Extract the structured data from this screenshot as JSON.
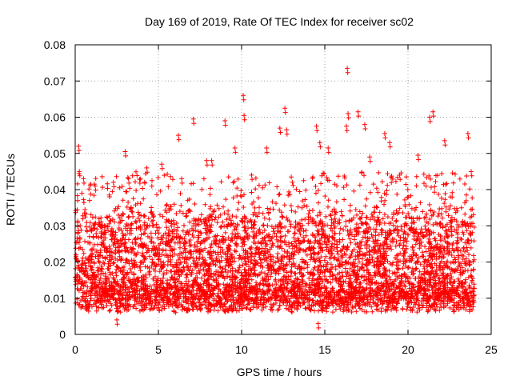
{
  "chart_data": {
    "type": "scatter",
    "title": "Day 169 of 2019, Rate Of TEC Index for receiver sc02",
    "xlabel": "GPS time / hours",
    "ylabel": "ROTI / TECUs",
    "xlim": [
      0,
      25
    ],
    "ylim": [
      0,
      0.08
    ],
    "x_ticks": [
      0,
      5,
      10,
      15,
      20,
      25
    ],
    "y_ticks": [
      0,
      0.01,
      0.02,
      0.03,
      0.04,
      0.05,
      0.06,
      0.07,
      0.08
    ],
    "x_tick_labels": [
      "0",
      "5",
      "10",
      "15",
      "20",
      "25"
    ],
    "y_tick_labels": [
      "0",
      "0.01",
      "0.02",
      "0.03",
      "0.04",
      "0.05",
      "0.06",
      "0.07",
      "0.08"
    ],
    "grid": true,
    "marker": "+",
    "marker_color": "#ff0000",
    "x_data_range": [
      0,
      24
    ],
    "series": [
      {
        "name": "sc02 ROTI",
        "points": [
          [
            0.05,
            0.022
          ],
          [
            0.2,
            0.052
          ],
          [
            0.25,
            0.045
          ],
          [
            0.5,
            0.043
          ],
          [
            1.2,
            0.041
          ],
          [
            2.3,
            0.042
          ],
          [
            3.0,
            0.0505
          ],
          [
            3.2,
            0.043
          ],
          [
            4.3,
            0.046
          ],
          [
            5.2,
            0.047
          ],
          [
            6.2,
            0.055
          ],
          [
            6.4,
            0.043
          ],
          [
            7.1,
            0.0595
          ],
          [
            7.9,
            0.048
          ],
          [
            8.2,
            0.048
          ],
          [
            9.0,
            0.059
          ],
          [
            9.6,
            0.0515
          ],
          [
            10.1,
            0.066
          ],
          [
            10.15,
            0.0605
          ],
          [
            10.6,
            0.044
          ],
          [
            11.5,
            0.0515
          ],
          [
            12.3,
            0.057
          ],
          [
            12.6,
            0.0625
          ],
          [
            12.7,
            0.0565
          ],
          [
            14.5,
            0.0575
          ],
          [
            14.7,
            0.053
          ],
          [
            15.2,
            0.0515
          ],
          [
            16.3,
            0.0575
          ],
          [
            16.35,
            0.0735
          ],
          [
            16.4,
            0.061
          ],
          [
            17.0,
            0.0615
          ],
          [
            17.4,
            0.058
          ],
          [
            17.7,
            0.049
          ],
          [
            18.6,
            0.0555
          ],
          [
            18.9,
            0.053
          ],
          [
            19.5,
            0.044
          ],
          [
            20.6,
            0.0495
          ],
          [
            21.3,
            0.06
          ],
          [
            21.5,
            0.0615
          ],
          [
            22.2,
            0.0535
          ],
          [
            23.6,
            0.0555
          ],
          [
            23.8,
            0.045
          ],
          [
            14.6,
            0.003
          ],
          [
            2.5,
            0.004
          ]
        ]
      }
    ]
  }
}
